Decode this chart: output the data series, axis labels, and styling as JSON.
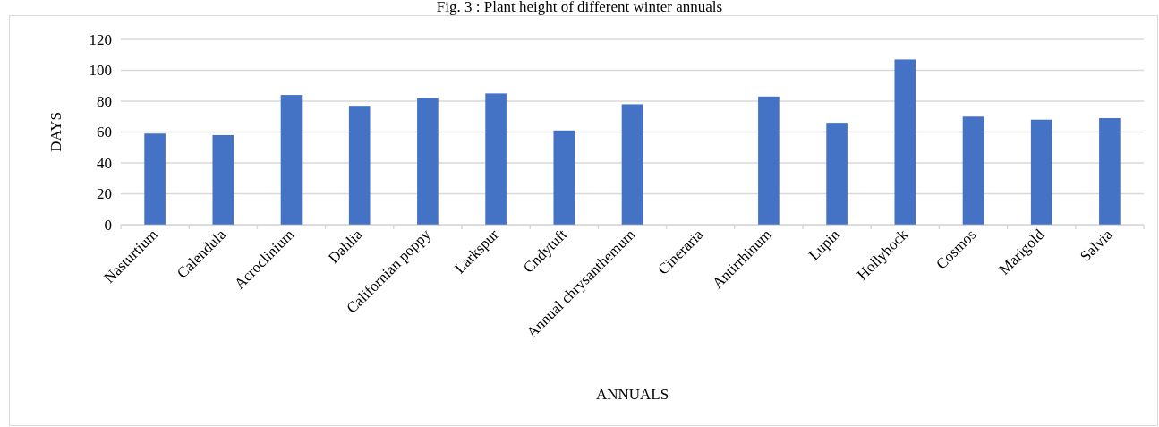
{
  "chart_data": {
    "type": "bar",
    "title": "Fig. 3 : Plant height of different winter annuals",
    "xlabel": "ANNUALS",
    "ylabel": "DAYS",
    "categories": [
      "Nasturtium",
      "Calendula",
      "Acroclinium",
      "Dahlia",
      "Californian poppy",
      "Larkspur",
      "Cndytuft",
      "Annual chrysanthemum",
      "Cineraria",
      "Antirrhinum",
      "Lupin",
      "Hollyhock",
      "Cosmos",
      "Marigold",
      "Salvia"
    ],
    "values": [
      59,
      58,
      84,
      77,
      82,
      85,
      61,
      78,
      null,
      83,
      66,
      107,
      70,
      68,
      69
    ],
    "color": "#4472c4",
    "ylim": [
      0,
      120
    ],
    "yticks": [
      0,
      20,
      40,
      60,
      80,
      100,
      120
    ],
    "grid": "y"
  }
}
